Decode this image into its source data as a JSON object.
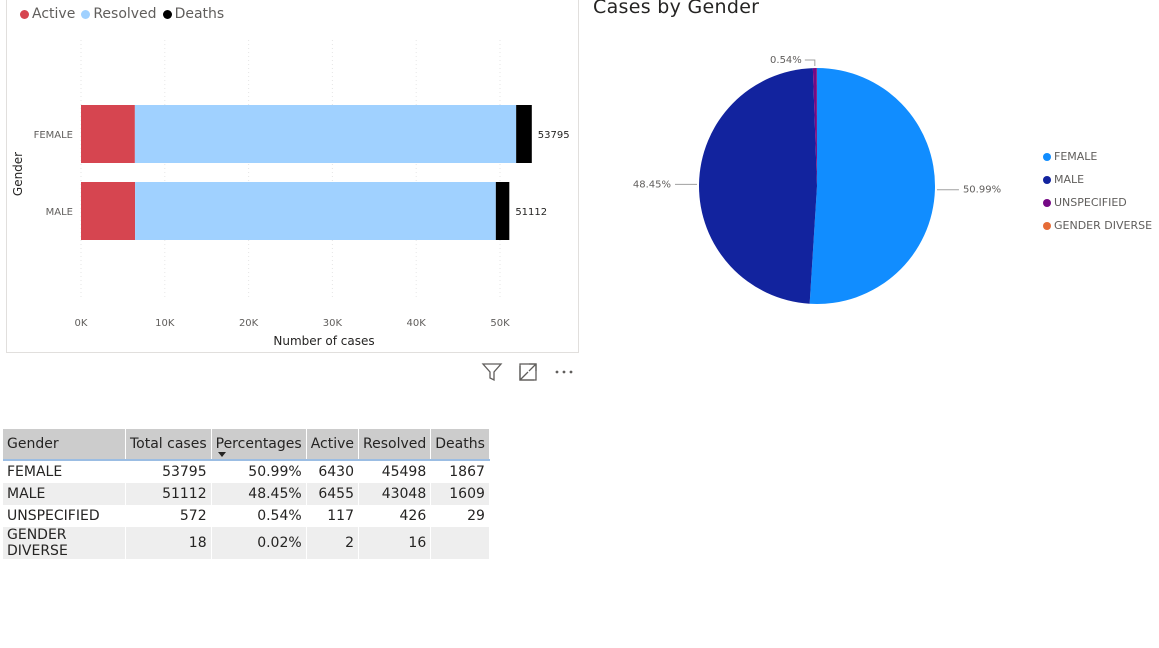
{
  "bar_chart": {
    "legend": [
      {
        "label": "Active",
        "color": "#d64550"
      },
      {
        "label": "Resolved",
        "color": "#a0d1ff"
      },
      {
        "label": "Deaths",
        "color": "#000000"
      }
    ],
    "y_axis_title": "Gender",
    "x_axis_title": "Number of cases",
    "x_ticks": [
      "0K",
      "10K",
      "20K",
      "30K",
      "40K",
      "50K"
    ]
  },
  "pie_chart": {
    "title": "Cases by Gender",
    "legend": [
      {
        "label": "FEMALE",
        "color": "#118dff"
      },
      {
        "label": "MALE",
        "color": "#12239e"
      },
      {
        "label": "UNSPECIFIED",
        "color": "#750985"
      },
      {
        "label": "GENDER DIVERSE",
        "color": "#e66c37"
      }
    ]
  },
  "visual_header": {
    "icons": [
      "filter-icon",
      "focus-mode-icon",
      "more-options-icon"
    ]
  },
  "table": {
    "headers": [
      "Gender",
      "Total cases",
      "Percentages",
      "Active",
      "Resolved",
      "Deaths"
    ],
    "rows": [
      [
        "FEMALE",
        "53795",
        "50.99%",
        "6430",
        "45498",
        "1867"
      ],
      [
        "MALE",
        "51112",
        "48.45%",
        "6455",
        "43048",
        "1609"
      ],
      [
        "UNSPECIFIED",
        "572",
        "0.54%",
        "117",
        "426",
        "29"
      ],
      [
        "GENDER DIVERSE",
        "18",
        "0.02%",
        "2",
        "16",
        ""
      ]
    ]
  },
  "chart_data": [
    {
      "type": "bar",
      "orientation": "horizontal",
      "stacked": true,
      "categories": [
        "FEMALE",
        "MALE"
      ],
      "series": [
        {
          "name": "Active",
          "values": [
            6430,
            6455
          ]
        },
        {
          "name": "Resolved",
          "values": [
            45498,
            43048
          ]
        },
        {
          "name": "Deaths",
          "values": [
            1867,
            1609
          ]
        }
      ],
      "totals": [
        53795,
        51112
      ],
      "xlabel": "Number of cases",
      "ylabel": "Gender",
      "xlim": [
        0,
        55000
      ],
      "grid": true,
      "legend": "top-left"
    },
    {
      "type": "pie",
      "title": "Cases by Gender",
      "labels": [
        "FEMALE",
        "MALE",
        "UNSPECIFIED",
        "GENDER DIVERSE"
      ],
      "values": [
        53795,
        51112,
        572,
        18
      ],
      "data_labels": [
        "50.99%",
        "48.45%",
        "0.54%",
        ""
      ],
      "legend": "right"
    }
  ]
}
